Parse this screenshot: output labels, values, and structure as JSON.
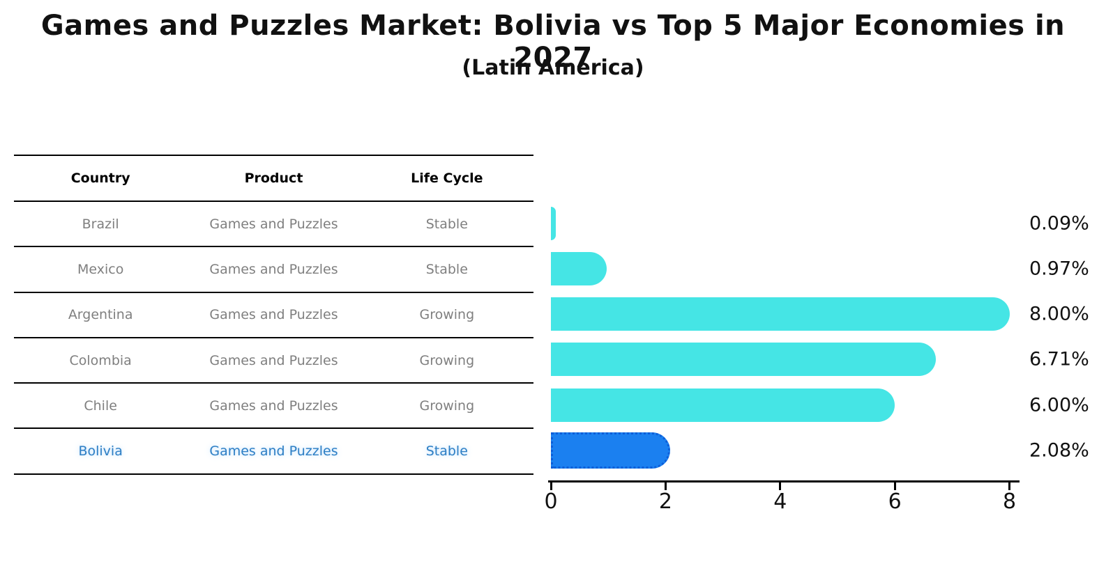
{
  "header": {
    "title": "Games and Puzzles Market: Bolivia vs Top 5 Major Economies in 2027",
    "subtitle": "(Latin America)"
  },
  "table": {
    "columns": [
      "Country",
      "Product",
      "Life Cycle"
    ],
    "rows": [
      {
        "country": "Brazil",
        "product": "Games and Puzzles",
        "life_cycle": "Stable"
      },
      {
        "country": "Mexico",
        "product": "Games and Puzzles",
        "life_cycle": "Stable"
      },
      {
        "country": "Argentina",
        "product": "Games and Puzzles",
        "life_cycle": "Growing"
      },
      {
        "country": "Colombia",
        "product": "Games and Puzzles",
        "life_cycle": "Growing"
      },
      {
        "country": "Chile",
        "product": "Games and Puzzles",
        "life_cycle": "Growing"
      },
      {
        "country": "Bolivia",
        "product": "Games and Puzzles",
        "life_cycle": "Stable"
      }
    ]
  },
  "chart_data": {
    "type": "bar",
    "orientation": "horizontal",
    "title": "Games and Puzzles Market: Bolivia vs Top 5 Major Economies in 2027",
    "subtitle": "(Latin America)",
    "categories": [
      "Brazil",
      "Mexico",
      "Argentina",
      "Colombia",
      "Chile",
      "Bolivia"
    ],
    "values": [
      0.09,
      0.97,
      8.0,
      6.71,
      6.0,
      2.08
    ],
    "value_labels": [
      "0.09%",
      "0.97%",
      "8.00%",
      "6.71%",
      "6.00%",
      "2.08%"
    ],
    "x_ticks": [
      0,
      2,
      4,
      6,
      8
    ],
    "xlim": [
      0,
      8.2
    ],
    "xlabel": "",
    "ylabel": "",
    "grid": false,
    "legend": false,
    "bar_color": "#45e5e5",
    "highlight_index": 5,
    "highlight_bar_color": "#1b80f0",
    "highlight_border_color": "#0d5ed8"
  },
  "colors": {
    "title_text": "#111111",
    "header_text": "#000000",
    "row_text": "#7f7f7f",
    "highlight_text": "#2e7fc4",
    "axis": "#000000",
    "background": "#ffffff"
  }
}
